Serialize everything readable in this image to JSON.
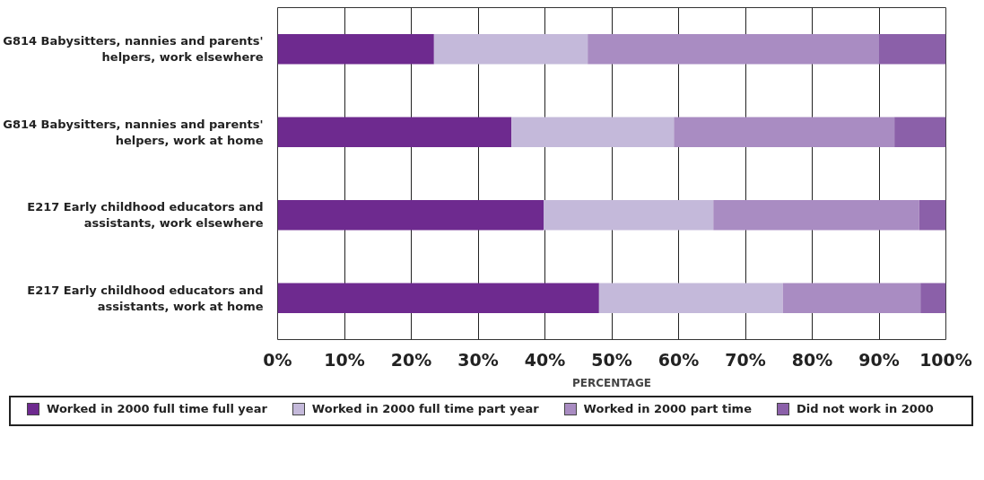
{
  "chart_data": {
    "type": "bar",
    "orientation": "horizontal",
    "stacked": true,
    "xlabel": "PERCENTAGE",
    "categories": [
      "G814 Babysitters, nannies and parents' helpers, work elsewhere",
      "G814 Babysitters, nannies and parents' helpers, work at home",
      "E217 Early childhood educators and assistants, work elsewhere",
      "E217 Early childhood educators and assistants, work at home"
    ],
    "series": [
      {
        "name": "Worked in 2000 full time full year",
        "color": "#6e2a8f",
        "values": [
          23.4,
          35.0,
          39.8,
          48.1
        ]
      },
      {
        "name": "Worked in 2000 full time part year",
        "color": "#c4b9da",
        "values": [
          23.0,
          24.3,
          25.4,
          27.5
        ]
      },
      {
        "name": "Worked in 2000 part time",
        "color": "#a98cc2",
        "values": [
          43.6,
          33.0,
          30.8,
          20.6
        ]
      },
      {
        "name": "Did not work in 2000",
        "color": "#8b60a9",
        "values": [
          10.0,
          7.7,
          4.0,
          3.8
        ]
      }
    ],
    "xlim": [
      0,
      100
    ],
    "xticks": [
      {
        "value": 0,
        "label": "0%"
      },
      {
        "value": 10,
        "label": "10%"
      },
      {
        "value": 20,
        "label": "20%"
      },
      {
        "value": 30,
        "label": "30%"
      },
      {
        "value": 40,
        "label": "40%"
      },
      {
        "value": 50,
        "label": "50%"
      },
      {
        "value": 60,
        "label": "60%"
      },
      {
        "value": 70,
        "label": "70%"
      },
      {
        "value": 80,
        "label": "80%"
      },
      {
        "value": 90,
        "label": "90%"
      },
      {
        "value": 100,
        "label": "100%"
      }
    ],
    "grid": "x",
    "legend": "bottom"
  }
}
